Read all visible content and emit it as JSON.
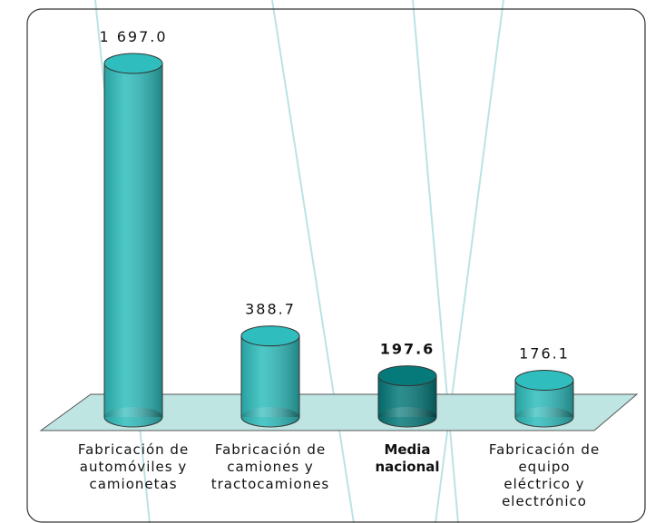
{
  "chart_data": {
    "type": "bar",
    "categories": [
      "Fabricación de automóviles y camionetas",
      "Fabricación de camiones y tractocamiones",
      "Media nacional",
      "Fabricación de equipo eléctrico y electrónico"
    ],
    "values": [
      1697.0,
      388.7,
      197.6,
      176.1
    ],
    "value_labels": [
      "1 697.0",
      "388.7",
      "197.6",
      "176.1"
    ],
    "colors": [
      "#2fbdbd",
      "#2fbdbd",
      "#067a7a",
      "#2fbdbd"
    ],
    "bold": [
      false,
      false,
      true,
      false
    ]
  }
}
